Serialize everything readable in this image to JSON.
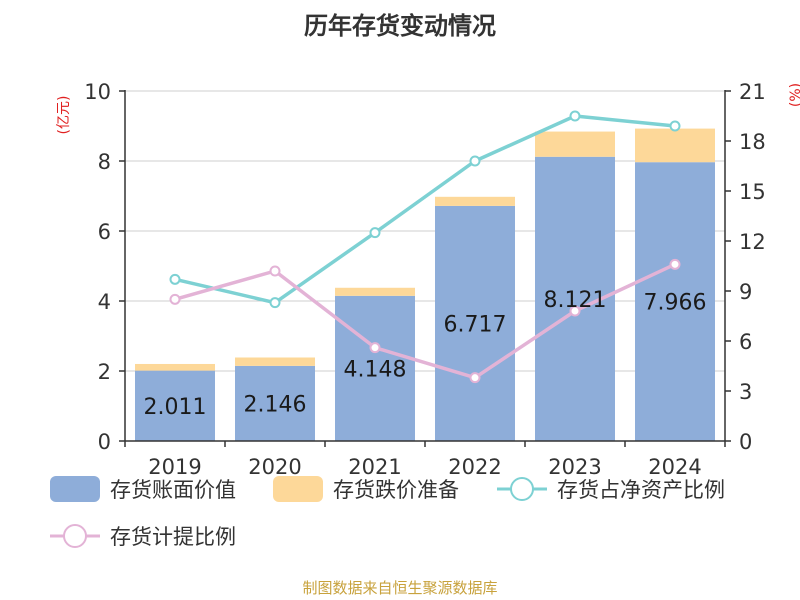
{
  "chart_data": {
    "type": "bar",
    "title": "历年存货变动情况",
    "categories": [
      "2019",
      "2020",
      "2021",
      "2022",
      "2023",
      "2024"
    ],
    "left_axis": {
      "label": "(亿元)",
      "ylim": [
        0,
        10
      ],
      "ticks": [
        "0",
        "2",
        "4",
        "6",
        "8",
        "10"
      ]
    },
    "right_axis": {
      "label": "(%)",
      "ylim": [
        0,
        21
      ],
      "ticks": [
        "0",
        "3",
        "6",
        "9",
        "12",
        "15",
        "18",
        "21"
      ]
    },
    "series": [
      {
        "name": "存货账面价值",
        "kind": "bar",
        "axis": "left",
        "color": "#8eadd9",
        "values": [
          2.011,
          2.146,
          4.148,
          6.717,
          8.121,
          7.966
        ],
        "labels": [
          "2.011",
          "2.146",
          "4.148",
          "6.717",
          "8.121",
          "7.966"
        ]
      },
      {
        "name": "存货跌价准备",
        "kind": "bar-stack",
        "axis": "left",
        "color": "#fdd899",
        "values": [
          0.19,
          0.24,
          0.23,
          0.26,
          0.72,
          0.96
        ]
      },
      {
        "name": "存货占净资产比例",
        "kind": "line",
        "axis": "right",
        "color": "#7dd1d3",
        "values": [
          9.7,
          8.3,
          12.5,
          16.8,
          19.5,
          18.9
        ]
      },
      {
        "name": "存货计提比例",
        "kind": "line",
        "axis": "right",
        "color": "#e3b3d6",
        "values": [
          8.5,
          10.2,
          5.6,
          3.8,
          7.8,
          10.6
        ]
      }
    ],
    "grid": true,
    "legend_position": "bottom"
  },
  "source": "制图数据来自恒生聚源数据库"
}
